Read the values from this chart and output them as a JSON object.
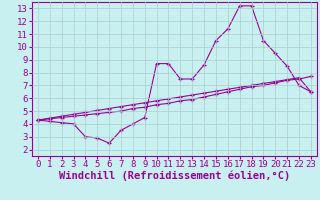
{
  "xlabel": "Windchill (Refroidissement éolien,°C)",
  "background_color": "#c8f0f0",
  "grid_color": "#aacccc",
  "line_color": "#990099",
  "xlim": [
    -0.5,
    23.5
  ],
  "ylim": [
    1.5,
    13.5
  ],
  "xticks": [
    0,
    1,
    2,
    3,
    4,
    5,
    6,
    7,
    8,
    9,
    10,
    11,
    12,
    13,
    14,
    15,
    16,
    17,
    18,
    19,
    20,
    21,
    22,
    23
  ],
  "yticks": [
    2,
    3,
    4,
    5,
    6,
    7,
    8,
    9,
    10,
    11,
    12,
    13
  ],
  "line1_x": [
    0,
    1,
    2,
    3,
    4,
    5,
    6,
    7,
    8,
    9,
    10,
    11,
    12,
    13,
    14,
    15,
    16,
    17,
    18,
    19,
    20,
    21,
    22,
    23
  ],
  "line1_y": [
    4.3,
    4.2,
    4.1,
    4.0,
    3.0,
    2.9,
    2.5,
    3.5,
    4.0,
    4.5,
    8.7,
    8.7,
    7.5,
    7.5,
    8.6,
    10.5,
    11.4,
    13.2,
    13.2,
    10.5,
    9.5,
    8.5,
    7.0,
    6.5
  ],
  "line2_x": [
    0,
    1,
    2,
    3,
    4,
    5,
    6,
    7,
    8,
    9,
    10,
    11,
    12,
    13,
    14,
    15,
    16,
    17,
    18,
    19,
    20,
    21,
    22,
    23
  ],
  "line2_y": [
    4.3,
    4.4,
    4.5,
    4.6,
    4.7,
    4.8,
    4.9,
    5.0,
    5.2,
    5.3,
    5.5,
    5.6,
    5.8,
    5.9,
    6.1,
    6.3,
    6.5,
    6.7,
    6.9,
    7.0,
    7.2,
    7.4,
    7.5,
    7.7
  ],
  "line3_x": [
    0,
    1,
    2,
    3,
    4,
    5,
    6,
    7,
    8,
    9,
    10,
    11,
    12,
    13,
    14,
    15,
    16,
    17,
    18,
    19,
    20,
    21,
    22,
    23
  ],
  "line3_y": [
    4.3,
    4.45,
    4.6,
    4.75,
    4.9,
    5.05,
    5.2,
    5.35,
    5.5,
    5.65,
    5.8,
    5.95,
    6.1,
    6.25,
    6.4,
    6.55,
    6.7,
    6.85,
    7.0,
    7.15,
    7.3,
    7.45,
    7.6,
    6.5
  ],
  "xlabel_fontsize": 7.5,
  "tick_fontsize": 6.5
}
